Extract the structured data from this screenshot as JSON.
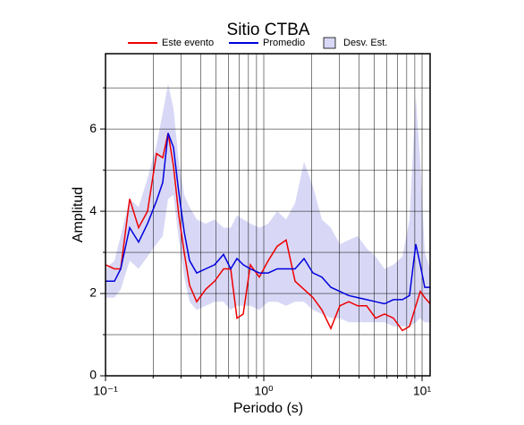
{
  "chart_data": {
    "type": "line",
    "title": "Sitio CTBA",
    "x_label": "Periodo (s)",
    "y_label": "Amplitud",
    "xscale": "log",
    "grid": true,
    "xlim": [
      0.1,
      11.24
    ],
    "ylim": [
      0,
      7.83
    ],
    "xticks": [
      {
        "value": 0.1,
        "label": "10⁻¹"
      },
      {
        "value": 1,
        "label": "10⁰"
      },
      {
        "value": 10,
        "label": "10¹"
      }
    ],
    "xminor": [
      0.2,
      0.3,
      0.4,
      0.5,
      0.6,
      0.7,
      0.8,
      0.9,
      2,
      3,
      4,
      5,
      6,
      7,
      8,
      9
    ],
    "yticks": [
      0,
      2,
      4,
      6
    ],
    "yminor": [
      1,
      3,
      5,
      7
    ],
    "x": [
      0.1,
      0.1139,
      0.1248,
      0.1421,
      0.1618,
      0.1843,
      0.2099,
      0.2299,
      0.2486,
      0.2688,
      0.2906,
      0.3142,
      0.3397,
      0.377,
      0.4293,
      0.489,
      0.5568,
      0.618,
      0.6768,
      0.7416,
      0.8228,
      0.9371,
      1.067,
      1.215,
      1.384,
      1.576,
      1.796,
      2.045,
      2.329,
      2.653,
      3.021,
      3.441,
      3.919,
      4.464,
      5.084,
      5.791,
      6.595,
      7.512,
      8.335,
      9.131,
      9.743,
      10.39,
      11.24
    ],
    "series": [
      {
        "name": "Este evento",
        "color": "#ee0000",
        "values": [
          2.7,
          2.6,
          2.6,
          4.3,
          3.6,
          4.0,
          5.4,
          5.3,
          5.9,
          5.1,
          3.9,
          3.0,
          2.2,
          1.8,
          2.1,
          2.3,
          2.6,
          2.6,
          1.4,
          1.5,
          2.7,
          2.4,
          2.8,
          3.15,
          3.3,
          2.3,
          2.1,
          1.9,
          1.6,
          1.15,
          1.7,
          1.8,
          1.7,
          1.7,
          1.4,
          1.5,
          1.4,
          1.1,
          1.2,
          1.7,
          2.05,
          1.9,
          1.75
        ]
      },
      {
        "name": "Promedio",
        "color": "#0000dd",
        "values": [
          2.3,
          2.3,
          2.6,
          3.6,
          3.25,
          3.7,
          4.25,
          4.7,
          5.9,
          5.55,
          4.45,
          3.5,
          2.8,
          2.5,
          2.6,
          2.7,
          2.95,
          2.6,
          2.85,
          2.7,
          2.6,
          2.5,
          2.5,
          2.6,
          2.6,
          2.6,
          2.85,
          2.5,
          2.4,
          2.15,
          2.05,
          1.95,
          1.9,
          1.85,
          1.8,
          1.75,
          1.85,
          1.85,
          1.95,
          3.2,
          2.7,
          2.15,
          2.15
        ]
      },
      {
        "name": "Desv. Est.",
        "color": "#d8d8f6",
        "type": "band",
        "upper": [
          2.6,
          2.8,
          3.4,
          4.3,
          4.1,
          4.8,
          5.6,
          6.4,
          7.1,
          6.5,
          5.2,
          4.4,
          4.1,
          3.8,
          3.7,
          3.8,
          3.6,
          3.6,
          3.9,
          3.8,
          3.7,
          3.6,
          3.7,
          4.0,
          3.8,
          4.2,
          5.2,
          4.6,
          3.8,
          3.6,
          3.2,
          3.3,
          3.4,
          3.1,
          2.9,
          2.6,
          2.7,
          2.9,
          3.8,
          6.8,
          5.2,
          3.0,
          2.6
        ],
        "lower": [
          1.9,
          1.9,
          2.1,
          2.8,
          2.6,
          2.9,
          3.2,
          3.4,
          4.3,
          4.4,
          3.3,
          2.4,
          1.8,
          1.6,
          1.7,
          1.8,
          1.8,
          1.6,
          1.7,
          1.7,
          1.7,
          1.6,
          1.8,
          1.8,
          1.7,
          1.8,
          1.8,
          1.6,
          1.5,
          1.4,
          1.4,
          1.3,
          1.3,
          1.3,
          1.3,
          1.3,
          1.2,
          1.2,
          1.2,
          1.3,
          1.4,
          1.3,
          1.3
        ]
      }
    ]
  }
}
